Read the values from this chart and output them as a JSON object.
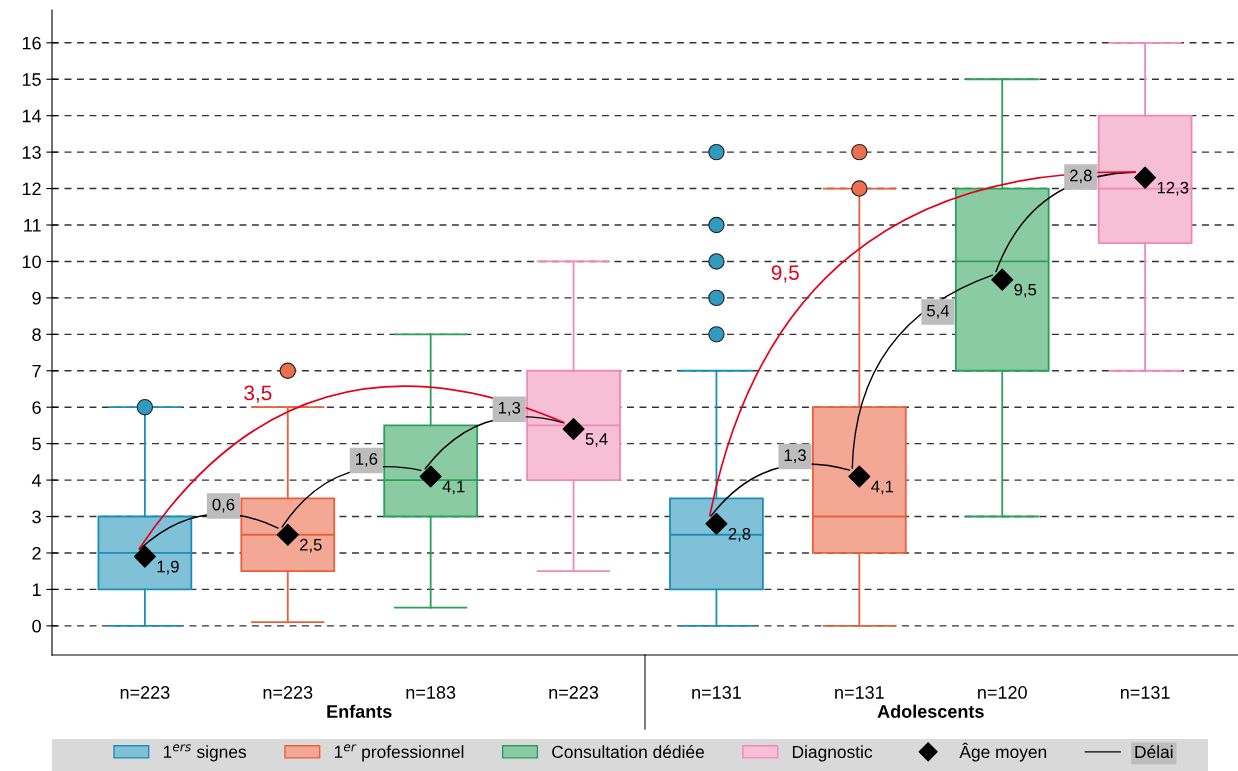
{
  "chart_data": {
    "type": "box",
    "categories": [
      "n=223",
      "n=223",
      "n=183",
      "n=223",
      "n=131",
      "n=131",
      "n=120",
      "n=131"
    ],
    "series": [
      {
        "name": "1$^{ers}$ signes",
        "color": "#1a8fb8",
        "boxes": [
          {
            "low": 0,
            "q1": 1,
            "median": 2,
            "q3": 3,
            "high": 6,
            "outliers": [
              6
            ]
          },
          null,
          null,
          null,
          {
            "low": 0,
            "q1": 1,
            "median": 2.5,
            "q3": 3.5,
            "high": 7,
            "outliers": [
              8,
              9,
              10,
              11,
              13
            ]
          },
          null,
          null,
          null
        ]
      },
      {
        "name": "1$^{er}$ professionnel",
        "color": "#e8603c",
        "boxes": [
          null,
          {
            "low": 0.1,
            "q1": 1.5,
            "median": 2.5,
            "q3": 3.5,
            "high": 6,
            "outliers": [
              7
            ]
          },
          null,
          null,
          null,
          {
            "low": 0,
            "q1": 2,
            "median": 3,
            "q3": 6,
            "high": 12,
            "outliers": [
              12,
              13
            ]
          },
          null,
          null
        ]
      },
      {
        "name": "Consultation dédiée",
        "color": "#2aa05a",
        "boxes": [
          null,
          null,
          {
            "low": 0.5,
            "q1": 3,
            "median": 4,
            "q3": 5.5,
            "high": 8
          },
          null,
          null,
          null,
          {
            "low": 3,
            "q1": 7,
            "median": 10,
            "q3": 12,
            "high": 15
          },
          null
        ]
      },
      {
        "name": "Diagnostic",
        "color": "#ee8ab5",
        "boxes": [
          null,
          null,
          null,
          {
            "low": 1.5,
            "q1": 4,
            "median": 5.5,
            "q3": 7,
            "high": 10
          },
          null,
          null,
          null,
          {
            "low": 7,
            "q1": 10.5,
            "median": 12,
            "q3": 14,
            "high": 16
          }
        ]
      },
      {
        "name": "Âge moyen",
        "type": "scatter",
        "color": "#000000",
        "marker": "diamond",
        "values": [
          1.9,
          2.5,
          4.1,
          5.4,
          2.8,
          4.1,
          9.5,
          12.3
        ],
        "value_labels": [
          "1,9",
          "2,5",
          "4,1",
          "5,4",
          "2,8",
          "4,1",
          "9,5",
          "12,3"
        ]
      }
    ],
    "ylim": [
      -0.8,
      16.9
    ],
    "yticks": [
      0,
      1,
      2,
      3,
      4,
      5,
      6,
      7,
      8,
      9,
      10,
      11,
      12,
      13,
      14,
      15,
      16
    ],
    "grid": "y",
    "legend": "bottom",
    "annotations": [
      "0,6",
      "1,6",
      "1,3",
      "3,5",
      "1,3",
      "5,4",
      "2,8",
      "9,5",
      "Enfants",
      "Adolescents",
      "Délai"
    ]
  }
}
